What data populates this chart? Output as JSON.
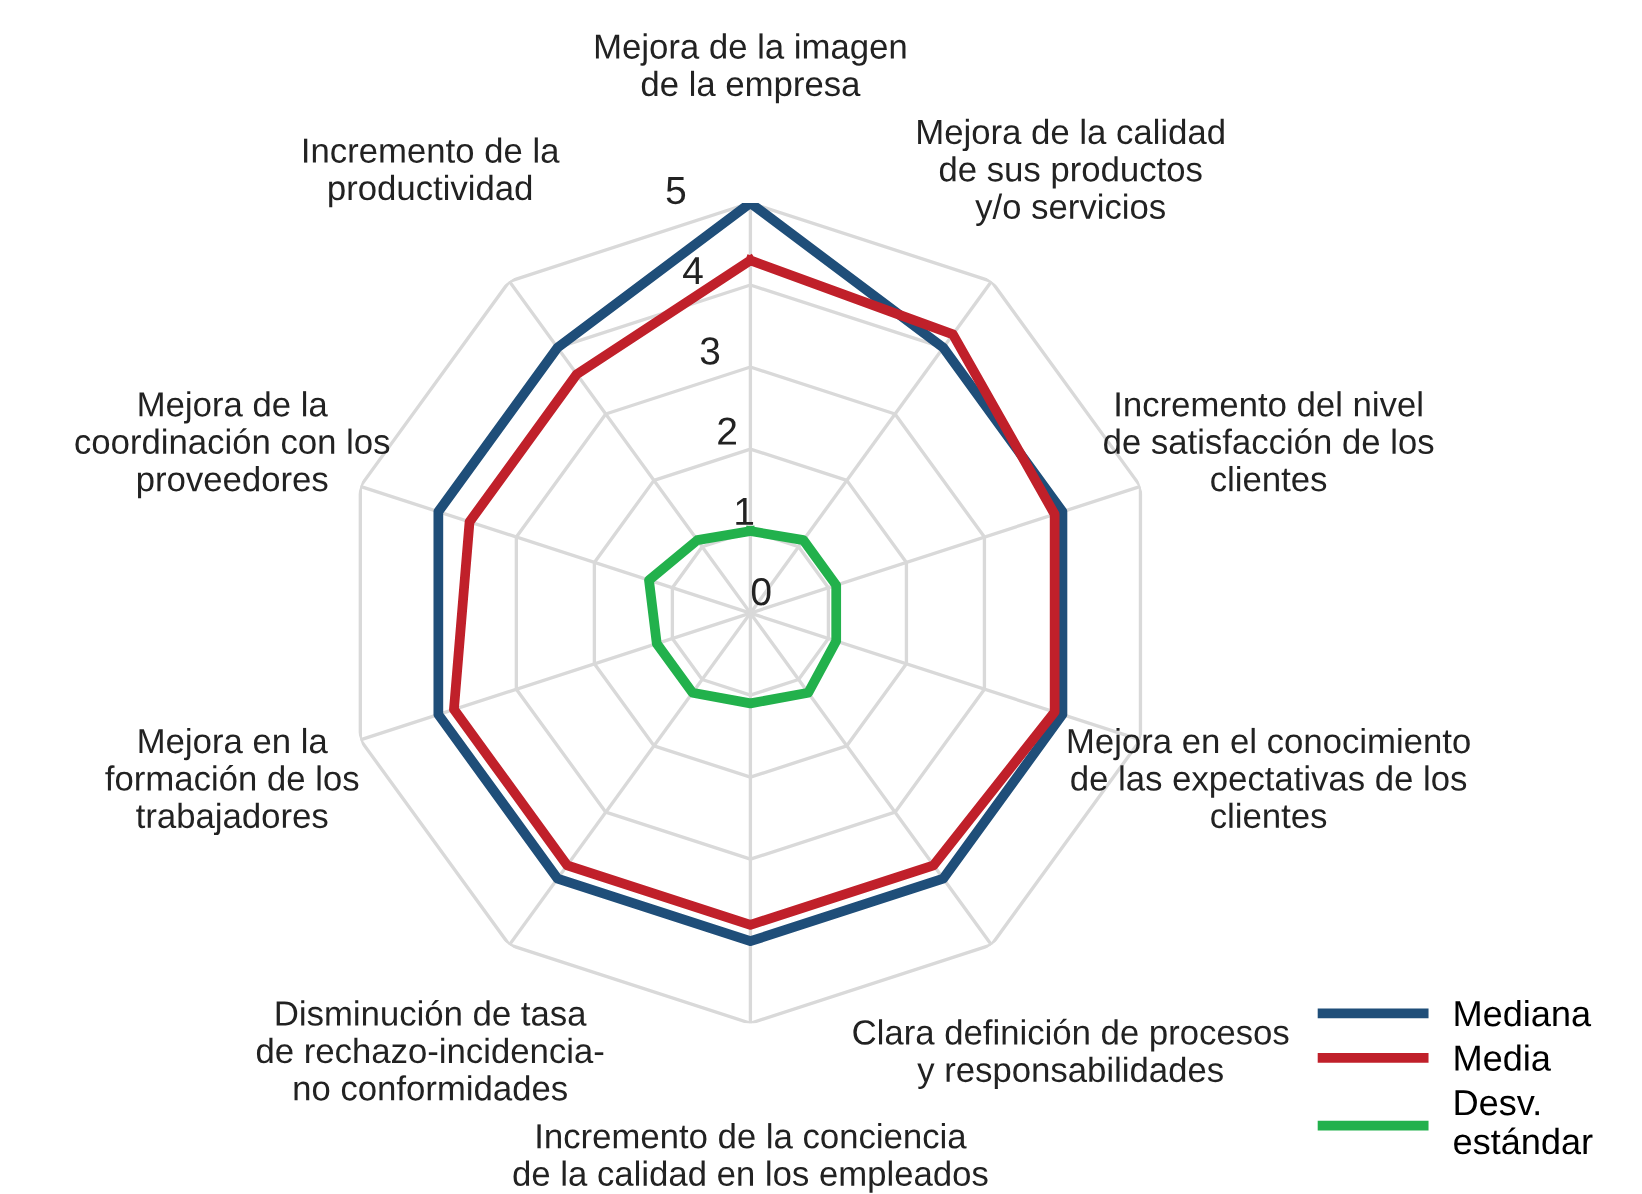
{
  "chart_data": {
    "type": "radar",
    "categories": [
      "Mejora de la imagen\nde la empresa",
      "Mejora de la calidad\nde sus productos\ny/o servicios",
      "Incremento del nivel\nde satisfacción de los\nclientes",
      "Mejora en el conocimiento\nde las expectativas de los\nclientes",
      "Clara definición de procesos\ny responsabilidades",
      "Incremento de la conciencia\nde la calidad en los empleados",
      "Disminución de tasa\nde rechazo-incidencia-\nno conformidades",
      "Mejora en la\nformación de los\ntrabajadores",
      "Mejora de la\ncoordinación con los\nproveedores",
      "Incremento de la\nproductividad"
    ],
    "series": [
      {
        "name": "Mediana",
        "color": "#1f4e79",
        "values": [
          5,
          4,
          4,
          4,
          4,
          4,
          4,
          4,
          4,
          4
        ]
      },
      {
        "name": "Media",
        "color": "#c0202a",
        "values": [
          4.3,
          4.2,
          3.9,
          3.9,
          3.8,
          3.8,
          3.8,
          3.8,
          3.6,
          3.6
        ]
      },
      {
        "name": "Desv.\nestándar",
        "color": "#22b14c",
        "values": [
          1.0,
          1.1,
          1.1,
          1.1,
          1.2,
          1.1,
          1.2,
          1.2,
          1.3,
          1.1
        ]
      }
    ],
    "ylim": [
      0,
      5
    ],
    "yticks": [
      0,
      1,
      2,
      3,
      4,
      5
    ],
    "grid": true,
    "legend": "bottom right",
    "marker": "none",
    "line_style": "solid"
  }
}
